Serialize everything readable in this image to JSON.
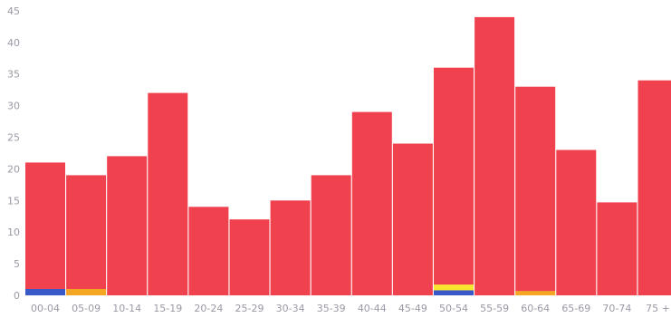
{
  "chart_data": {
    "type": "bar",
    "stacked": true,
    "title": "",
    "xlabel": "",
    "ylabel": "",
    "ylim": [
      0,
      45
    ],
    "y_ticks": [
      "0",
      "5",
      "10",
      "15",
      "20",
      "25",
      "30",
      "35",
      "40",
      "45"
    ],
    "grid": false,
    "categories": [
      "00-04",
      "05-09",
      "10-14",
      "15-19",
      "20-24",
      "25-29",
      "30-34",
      "35-39",
      "40-44",
      "45-49",
      "50-54",
      "55-59",
      "60-64",
      "65-69",
      "70-74",
      "75 +"
    ],
    "series": [
      {
        "color": "#3a59c8",
        "values": [
          1,
          0,
          0,
          0,
          0,
          0,
          0,
          0,
          0,
          0,
          0.8,
          0,
          0,
          0,
          0,
          0
        ]
      },
      {
        "color": "#f5a623",
        "values": [
          0,
          1,
          0,
          0,
          0,
          0,
          0,
          0,
          0,
          0,
          0,
          0,
          0.7,
          0,
          0,
          0
        ]
      },
      {
        "color": "#f7e52e",
        "values": [
          0,
          0,
          0,
          0,
          0,
          0,
          0,
          0,
          0,
          0,
          0.9,
          0,
          0,
          0,
          0,
          0
        ]
      },
      {
        "color": "#f0414f",
        "values": [
          20,
          18,
          22,
          32,
          14,
          12,
          15,
          19,
          29,
          24,
          34.3,
          44,
          32.3,
          23,
          14.7,
          34
        ]
      }
    ]
  }
}
